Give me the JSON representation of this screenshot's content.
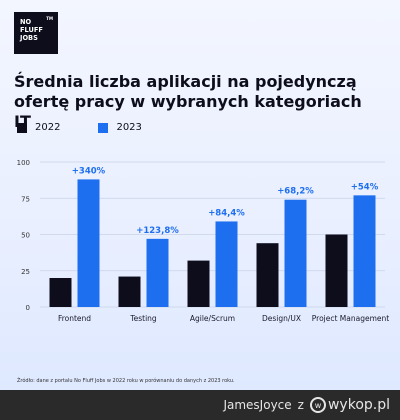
{
  "logo": {
    "lines": [
      "NO",
      "FLUFF",
      "JOBS"
    ],
    "tm": "TM"
  },
  "title": "Średnia liczba aplikacji na pojedynczą ofertę pracy w wybranych kategoriach IT",
  "source": "Źródło: dane z portalu No Fluff Jobs w 2022 roku w porównaniu do danych z 2023 roku.",
  "footer": {
    "user": "JamesJoyce",
    "z": "z",
    "site": "wykop.pl",
    "icon": "wykop-logo-icon"
  },
  "colors": {
    "s2022": "#0d0d1c",
    "s2023": "#1e6ff0",
    "grid": "#c8d2e6",
    "annotation": "#1e6ff0"
  },
  "chart_data": {
    "type": "bar",
    "title": "Średnia liczba aplikacji na pojedynczą ofertę pracy w wybranych kategoriach IT",
    "categories": [
      "Frontend",
      "Testing",
      "Agile/Scrum",
      "Design/UX",
      "Project Management"
    ],
    "series": [
      {
        "name": "2022",
        "values": [
          20,
          21,
          32,
          44,
          50
        ]
      },
      {
        "name": "2023",
        "values": [
          88,
          47,
          59,
          74,
          77
        ]
      }
    ],
    "annotations": [
      "+340%",
      "+123,8%",
      "+84,4%",
      "+68,2%",
      "+54%"
    ],
    "yticks": [
      0,
      25,
      50,
      75,
      100
    ],
    "ylim": [
      0,
      100
    ],
    "grid": true,
    "legend": "top-left"
  }
}
